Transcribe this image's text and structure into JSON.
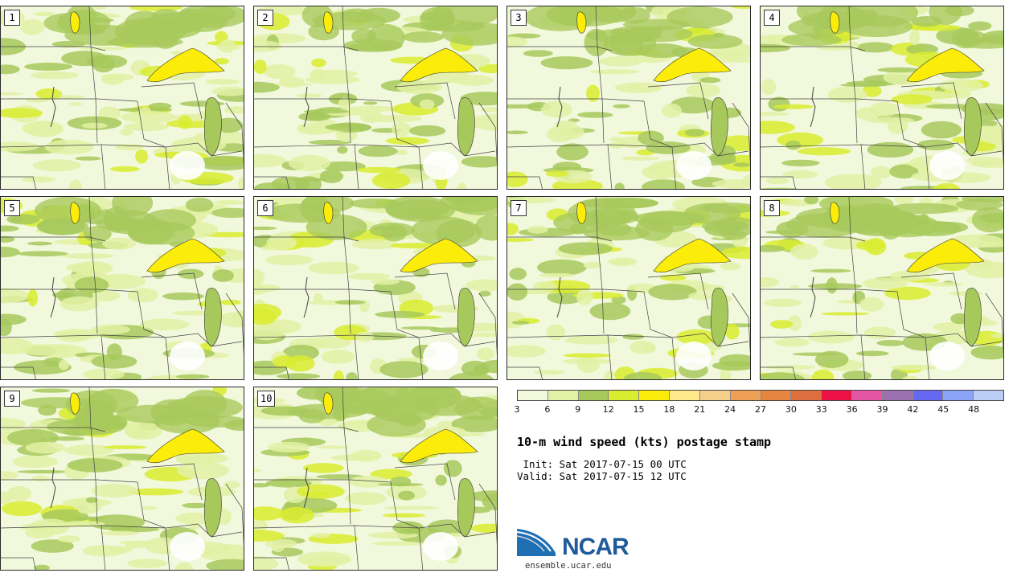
{
  "panels": [
    {
      "label": "1",
      "seed": 11
    },
    {
      "label": "2",
      "seed": 23
    },
    {
      "label": "3",
      "seed": 37
    },
    {
      "label": "4",
      "seed": 41
    },
    {
      "label": "5",
      "seed": 53
    },
    {
      "label": "6",
      "seed": 67
    },
    {
      "label": "7",
      "seed": 79
    },
    {
      "label": "8",
      "seed": 83
    },
    {
      "label": "9",
      "seed": 97
    },
    {
      "label": "10",
      "seed": 101
    }
  ],
  "legend": {
    "ticks": [
      "3",
      "6",
      "9",
      "12",
      "15",
      "18",
      "21",
      "24",
      "27",
      "30",
      "33",
      "36",
      "39",
      "42",
      "45",
      "48"
    ],
    "colors": [
      "#f2f8dc",
      "#e3f1a6",
      "#a7c95c",
      "#d9ec2f",
      "#fbec0a",
      "#fde98a",
      "#f4cf8a",
      "#eea155",
      "#e5853f",
      "#dd6f3f",
      "#ec1147",
      "#e456a4",
      "#9d70b2",
      "#6768f2",
      "#8ba4f5",
      "#b9cdf5"
    ]
  },
  "title": "10-m wind speed (kts) postage stamp",
  "init_line": " Init: Sat 2017-07-15 00 UTC",
  "valid_line": "Valid: Sat 2017-07-15 12 UTC",
  "logo": {
    "brand": "NCAR",
    "url": "ensemble.ucar.edu"
  }
}
